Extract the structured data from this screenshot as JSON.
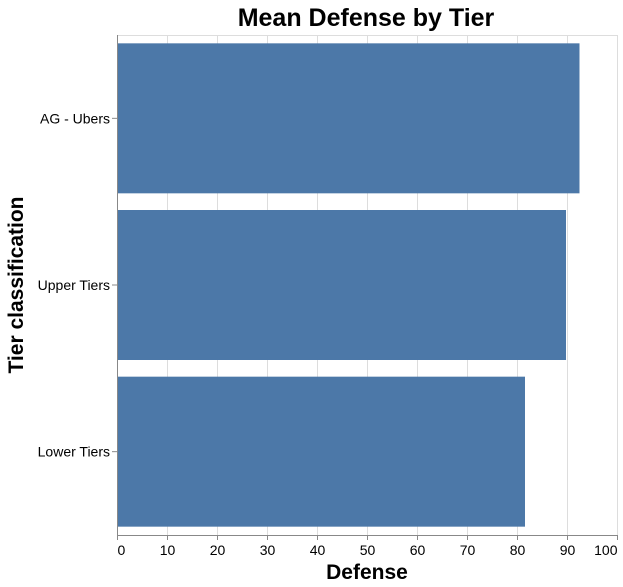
{
  "chart_data": {
    "type": "bar",
    "orientation": "horizontal",
    "title": "Mean Defense by Tier",
    "xlabel": "Defense",
    "ylabel": "Tier classification",
    "categories": [
      "AG - Ubers",
      "Upper Tiers",
      "Lower Tiers"
    ],
    "values": [
      92.5,
      89.8,
      81.6
    ],
    "xlim": [
      0,
      100
    ],
    "xticks": [
      0,
      10,
      20,
      30,
      40,
      50,
      60,
      70,
      80,
      90,
      100
    ],
    "grid": true,
    "legend": "none",
    "bar_color": "#4c78a8"
  }
}
